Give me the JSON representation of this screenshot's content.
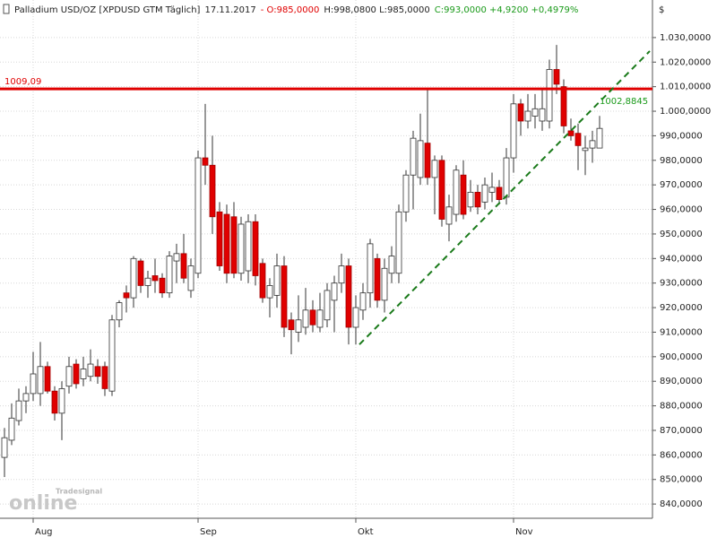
{
  "chart_data": {
    "type": "candlestick",
    "header": [
      {
        "text": "Palladium USD/OZ [XPDUSD GTM  Täglich]",
        "color": "#222222"
      },
      {
        "text": "17.11.2017",
        "color": "#222222"
      },
      {
        "text": "- O:985,0000",
        "color": "#e00000"
      },
      {
        "text": "H:998,0800 L:985,0000",
        "color": "#222222"
      },
      {
        "text": "C:993,0000 +4,9200 +0,4979%",
        "color": "#1a9a1a"
      }
    ],
    "y_axis_label": "$",
    "categories": [
      null,
      null,
      null,
      null,
      "Aug",
      null,
      null,
      null,
      null,
      null,
      null,
      null,
      null,
      null,
      null,
      null,
      null,
      null,
      null,
      null,
      null,
      null,
      null,
      null,
      null,
      null,
      null,
      "Sep",
      null,
      null,
      null,
      null,
      null,
      null,
      null,
      null,
      null,
      null,
      null,
      null,
      null,
      null,
      null,
      null,
      null,
      null,
      null,
      null,
      null,
      "Okt",
      null,
      null,
      null,
      null,
      null,
      null,
      null,
      null,
      null,
      null,
      null,
      null,
      null,
      null,
      null,
      null,
      null,
      null,
      null,
      null,
      null,
      "Nov",
      null,
      null,
      null,
      null,
      null,
      null,
      null,
      null,
      null,
      null,
      null,
      null
    ],
    "open": [
      859,
      866,
      874,
      882,
      885,
      885,
      896,
      886,
      877,
      888,
      897,
      891,
      892,
      896,
      896,
      886,
      915,
      926,
      924,
      939,
      929,
      933,
      932,
      926,
      939,
      942,
      927,
      934,
      981,
      978,
      959,
      958,
      957,
      934,
      935,
      955,
      938,
      924,
      925,
      937,
      915,
      910,
      912,
      919,
      912,
      915,
      923,
      930,
      937,
      912,
      919,
      926,
      940,
      923,
      934,
      934,
      959,
      974,
      973,
      987,
      973,
      980,
      954,
      958,
      974,
      961,
      967,
      963,
      967,
      969,
      965,
      981,
      1003,
      996,
      998,
      996,
      996,
      1017,
      1010,
      992,
      991,
      984,
      985,
      985
    ],
    "high": [
      871,
      881,
      887,
      888,
      902,
      906,
      898,
      888,
      890,
      900,
      899,
      900,
      903,
      899,
      898,
      917,
      923,
      929,
      941,
      940,
      935,
      940,
      934,
      943,
      946,
      950,
      940,
      984,
      1003,
      990,
      963,
      962,
      963,
      957,
      958,
      958,
      940,
      932,
      942,
      941,
      918,
      925,
      928,
      923,
      926,
      930,
      933,
      942,
      940,
      925,
      930,
      948,
      942,
      940,
      945,
      962,
      976,
      992,
      999,
      1009,
      982,
      982,
      966,
      978,
      980,
      972,
      970,
      973,
      975,
      972,
      985,
      1007,
      1005,
      1007,
      1007,
      1009,
      1021,
      1027,
      1013,
      997,
      995,
      990,
      992,
      998.08
    ],
    "low": [
      851,
      864,
      872,
      877,
      882,
      880,
      885,
      874,
      866,
      885,
      887,
      888,
      890,
      889,
      884,
      884,
      912,
      918,
      920,
      926,
      924,
      926,
      924,
      924,
      930,
      930,
      924,
      932,
      970,
      950,
      935,
      930,
      932,
      931,
      930,
      929,
      922,
      916,
      920,
      908,
      901,
      906,
      909,
      910,
      910,
      912,
      910,
      926,
      905,
      905,
      915,
      920,
      920,
      918,
      930,
      930,
      955,
      960,
      970,
      970,
      958,
      953,
      947,
      955,
      956,
      959,
      958,
      960,
      963,
      962,
      962,
      975,
      990,
      993,
      993,
      992,
      993,
      1007,
      991,
      988,
      976,
      974,
      979,
      985
    ],
    "close": [
      867,
      875,
      882,
      885,
      893,
      896,
      886,
      877,
      887,
      896,
      889,
      895,
      897,
      892,
      887,
      915,
      922,
      924,
      940,
      929,
      932,
      931,
      926,
      941,
      942,
      932,
      937,
      981,
      978,
      957,
      937,
      934,
      934,
      954,
      955,
      933,
      924,
      929,
      937,
      912,
      911,
      915,
      919,
      913,
      919,
      927,
      930,
      937,
      912,
      920,
      926,
      946,
      923,
      936,
      941,
      959,
      974,
      989,
      988,
      973,
      980,
      956,
      961,
      976,
      958,
      967,
      961,
      970,
      969,
      964,
      981,
      1003,
      996,
      1000,
      1001,
      1001,
      1017,
      1011,
      994,
      990,
      986,
      985,
      988,
      993
    ],
    "up_color": "#ffffff",
    "down_color": "#e00000",
    "ylim": [
      834.2,
      1045.3
    ],
    "yticks": [
      {
        "value": 840,
        "label": "840,0000"
      },
      {
        "value": 850,
        "label": "850,0000"
      },
      {
        "value": 860,
        "label": "860,0000"
      },
      {
        "value": 870,
        "label": "870,0000"
      },
      {
        "value": 880,
        "label": "880,0000"
      },
      {
        "value": 890,
        "label": "890,0000"
      },
      {
        "value": 900,
        "label": "900,0000"
      },
      {
        "value": 910,
        "label": "910,0000"
      },
      {
        "value": 920,
        "label": "920,0000"
      },
      {
        "value": 930,
        "label": "930,0000"
      },
      {
        "value": 940,
        "label": "940,0000"
      },
      {
        "value": 950,
        "label": "950,0000"
      },
      {
        "value": 960,
        "label": "960,0000"
      },
      {
        "value": 970,
        "label": "970,0000"
      },
      {
        "value": 980,
        "label": "980,0000"
      },
      {
        "value": 990,
        "label": "990,0000"
      },
      {
        "value": 1000,
        "label": "1.000,0000"
      },
      {
        "value": 1010,
        "label": "1.010,0000"
      },
      {
        "value": 1020,
        "label": "1.020,0000"
      },
      {
        "value": 1030,
        "label": "1.030,0000"
      }
    ],
    "grid": true,
    "resistance": {
      "value": 1009.09,
      "label": "1009,09",
      "color": "#e00000"
    },
    "trendline": {
      "x": [
        49.5,
        90
      ],
      "values": [
        905,
        1024.5
      ],
      "color": "#1a7a1a"
    },
    "trendline_label": {
      "value": 1002.8845,
      "label": "1002,8845",
      "color": "#1a9a1a"
    },
    "logo": {
      "brand": "Tradesignal",
      "name": "online"
    }
  }
}
